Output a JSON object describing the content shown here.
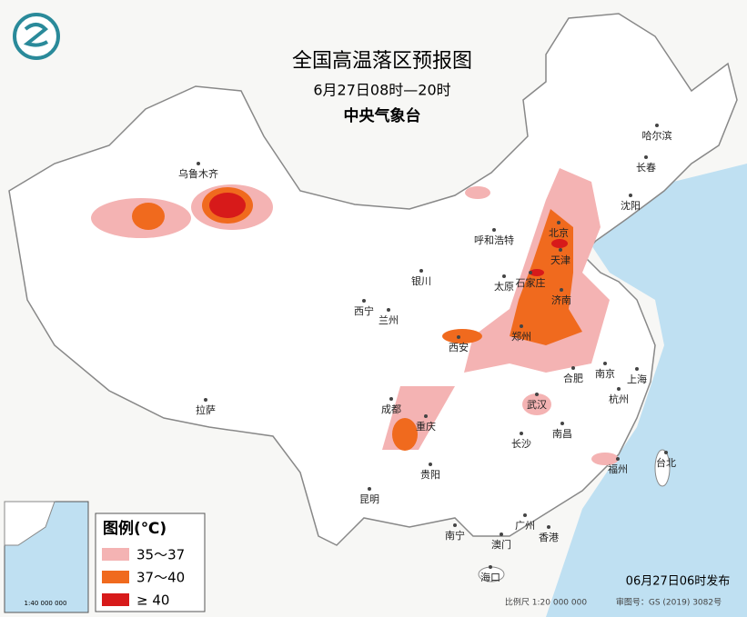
{
  "header": {
    "title": "全国高温落区预报图",
    "subtitle": "6月27日08时—20时",
    "agency": "中央气象台"
  },
  "cities": [
    "乌鲁木齐",
    "哈尔滨",
    "长春",
    "沈阳",
    "北京",
    "天津",
    "呼和浩特",
    "石家庄",
    "太原",
    "济南",
    "银川",
    "西宁",
    "兰州",
    "西安",
    "郑州",
    "合肥",
    "南京",
    "上海",
    "杭州",
    "武汉",
    "成都",
    "重庆",
    "拉萨",
    "南昌",
    "长沙",
    "贵阳",
    "福州",
    "台北",
    "昆明",
    "南宁",
    "广州",
    "澳门",
    "香港",
    "海口"
  ],
  "legend": {
    "title": "图例(℃)",
    "items": [
      "35～37",
      "37～40",
      "≥ 40"
    ]
  },
  "footer": {
    "issued": "06月27日06时发布",
    "scale": "比例尺 1:20 000 000",
    "approval": "审图号：GS (2019) 3082号",
    "inset_scale": "1:40 000 000"
  }
}
